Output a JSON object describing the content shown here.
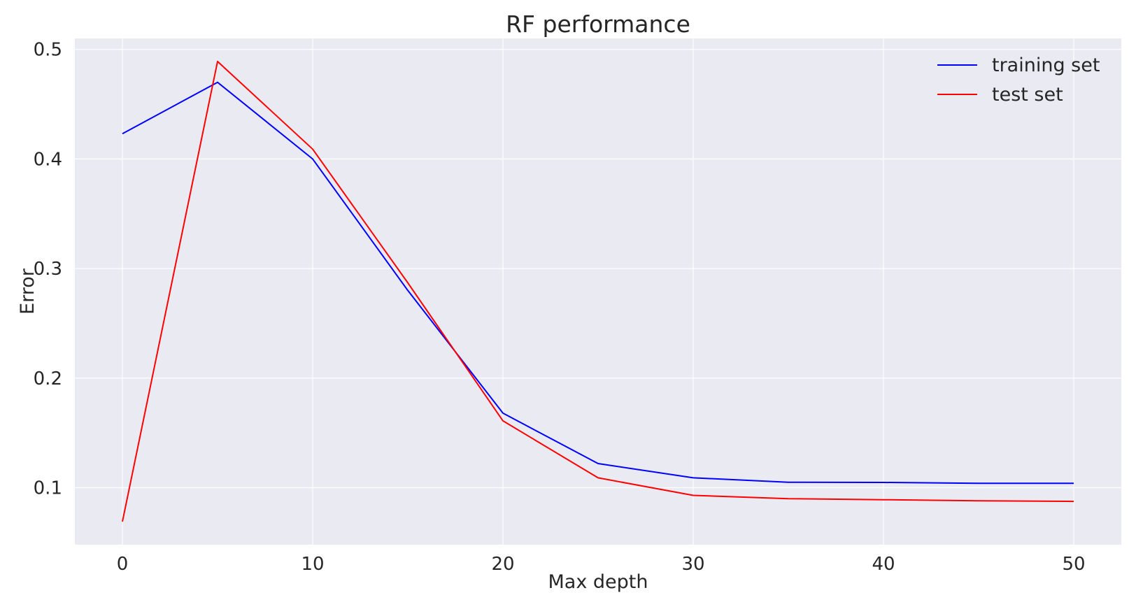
{
  "chart_data": {
    "type": "line",
    "title": "RF performance",
    "xlabel": "Max depth",
    "ylabel": "Error",
    "xlim": [
      -2.5,
      52.5
    ],
    "ylim": [
      0.048,
      0.51
    ],
    "xticks": [
      0,
      10,
      20,
      30,
      40,
      50
    ],
    "yticks": [
      0.1,
      0.2,
      0.3,
      0.4,
      0.5
    ],
    "xtick_labels": [
      "0",
      "10",
      "20",
      "30",
      "40",
      "50"
    ],
    "ytick_labels": [
      "0.1",
      "0.2",
      "0.3",
      "0.4",
      "0.5"
    ],
    "grid": true,
    "legend_position": "top-right",
    "x": [
      0,
      5,
      10,
      15,
      20,
      25,
      30,
      35,
      40,
      45,
      50
    ],
    "series": [
      {
        "name": "training set",
        "color": "#0000ff",
        "values": [
          0.423,
          0.47,
          0.4,
          0.28,
          0.168,
          0.122,
          0.109,
          0.105,
          0.1048,
          0.104,
          0.104
        ]
      },
      {
        "name": "test set",
        "color": "#ff0000",
        "values": [
          0.069,
          0.489,
          0.409,
          0.287,
          0.161,
          0.109,
          0.093,
          0.09,
          0.089,
          0.088,
          0.0875
        ]
      }
    ],
    "plot_background": "#eaeaf2",
    "grid_color": "#ffffff"
  }
}
